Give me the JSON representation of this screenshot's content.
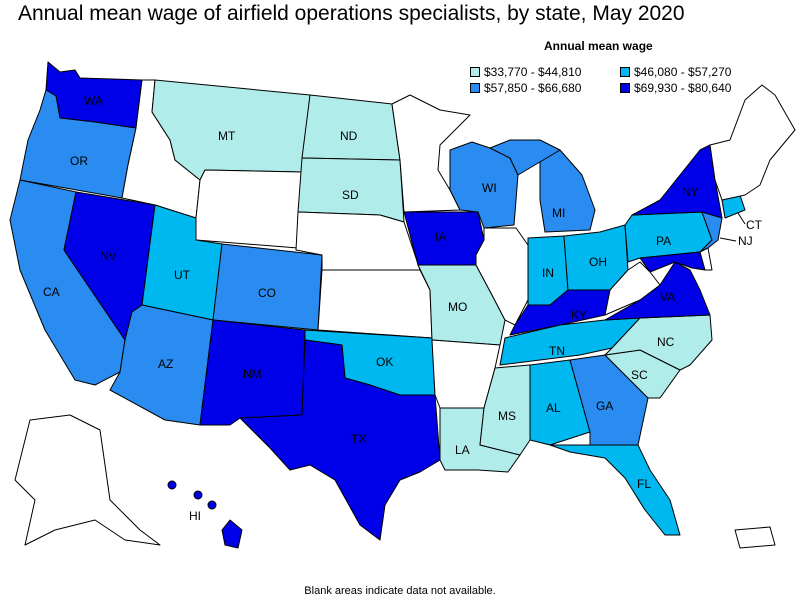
{
  "title": "Annual mean wage of airfield operations specialists, by state, May 2020",
  "legend": {
    "title": "Annual mean wage",
    "items": [
      {
        "label": "$33,770 - $44,810",
        "color": "#b0ecea"
      },
      {
        "label": "$46,080 - $57,270",
        "color": "#00b8f0"
      },
      {
        "label": "$57,850 - $66,680",
        "color": "#2a8cf0"
      },
      {
        "label": "$69,930 - $80,640",
        "color": "#0000e8"
      }
    ]
  },
  "colors": {
    "no_data": "#ffffff",
    "border": "#000000"
  },
  "states": {
    "WA": {
      "label": "WA",
      "bin": 3
    },
    "OR": {
      "label": "OR",
      "bin": 2
    },
    "CA": {
      "label": "CA",
      "bin": 2
    },
    "NV": {
      "label": "NV",
      "bin": 3
    },
    "ID": {
      "label": "",
      "bin": -1
    },
    "MT": {
      "label": "MT",
      "bin": 0
    },
    "WY": {
      "label": "",
      "bin": -1
    },
    "UT": {
      "label": "UT",
      "bin": 1
    },
    "AZ": {
      "label": "AZ",
      "bin": 2
    },
    "CO": {
      "label": "CO",
      "bin": 2
    },
    "NM": {
      "label": "NM",
      "bin": 3
    },
    "ND": {
      "label": "ND",
      "bin": 0
    },
    "SD": {
      "label": "SD",
      "bin": 0
    },
    "NE": {
      "label": "",
      "bin": -1
    },
    "KS": {
      "label": "",
      "bin": -1
    },
    "OK": {
      "label": "OK",
      "bin": 1
    },
    "TX": {
      "label": "TX",
      "bin": 3
    },
    "MN": {
      "label": "",
      "bin": -1
    },
    "IA": {
      "label": "IA",
      "bin": 3
    },
    "MO": {
      "label": "MO",
      "bin": 0
    },
    "AR": {
      "label": "",
      "bin": -1
    },
    "LA": {
      "label": "LA",
      "bin": 0
    },
    "WI": {
      "label": "WI",
      "bin": 2
    },
    "IL": {
      "label": "",
      "bin": -1
    },
    "MI": {
      "label": "MI",
      "bin": 2
    },
    "IN": {
      "label": "IN",
      "bin": 1
    },
    "OH": {
      "label": "OH",
      "bin": 1
    },
    "KY": {
      "label": "KY",
      "bin": 3
    },
    "TN": {
      "label": "TN",
      "bin": 1
    },
    "MS": {
      "label": "MS",
      "bin": 0
    },
    "AL": {
      "label": "AL",
      "bin": 1
    },
    "GA": {
      "label": "GA",
      "bin": 2
    },
    "FL": {
      "label": "FL",
      "bin": 1
    },
    "SC": {
      "label": "SC",
      "bin": 0
    },
    "NC": {
      "label": "NC",
      "bin": 0
    },
    "VA": {
      "label": "VA",
      "bin": 3
    },
    "WV": {
      "label": "",
      "bin": -1
    },
    "PA": {
      "label": "PA",
      "bin": 1
    },
    "NY": {
      "label": "NY",
      "bin": 3
    },
    "NJ": {
      "label": "NJ",
      "bin": 2
    },
    "CT": {
      "label": "CT",
      "bin": 1
    },
    "MD": {
      "label": "",
      "bin": 3
    },
    "DE": {
      "label": "",
      "bin": -1
    },
    "NE_states": {
      "label": "",
      "bin": -1
    },
    "AK": {
      "label": "",
      "bin": -1
    },
    "HI": {
      "label": "HI",
      "bin": 3
    },
    "PR": {
      "label": "",
      "bin": -1
    }
  },
  "footnote": "Blank areas indicate data not available."
}
